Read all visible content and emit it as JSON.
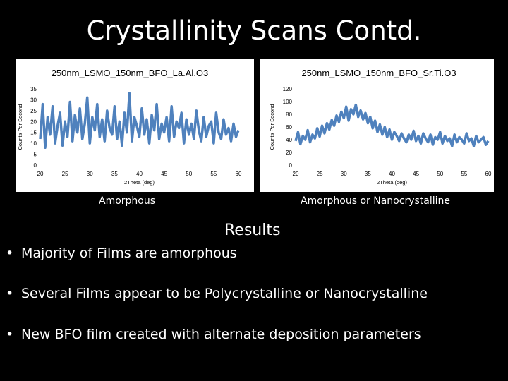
{
  "slide": {
    "title": "Crystallinity Scans Contd.",
    "results_heading": "Results",
    "bullets": [
      "Majority of Films are amorphous",
      "Several Films appear to be Polycrystalline or Nanocrystalline",
      "New BFO film created with alternate deposition parameters"
    ]
  },
  "chart_data": [
    {
      "type": "line",
      "title": "250nm_LSMO_150nm_BFO_La.Al.O3",
      "xlabel": "2Theta (deg)",
      "ylabel": "Counts Per Second",
      "xlim": [
        20,
        60
      ],
      "ylim": [
        0,
        35
      ],
      "x_ticks": [
        20,
        25,
        30,
        35,
        40,
        45,
        50,
        55,
        60
      ],
      "y_ticks": [
        0,
        5,
        10,
        15,
        20,
        25,
        30,
        35
      ],
      "series_color": "#4f81bd",
      "grid": false,
      "caption": "Amorphous",
      "x": [
        20,
        20.5,
        21,
        21.5,
        22,
        22.5,
        23,
        23.5,
        24,
        24.5,
        25,
        25.5,
        26,
        26.5,
        27,
        27.5,
        28,
        28.5,
        29,
        29.5,
        30,
        30.5,
        31,
        31.5,
        32,
        32.5,
        33,
        33.5,
        34,
        34.5,
        35,
        35.5,
        36,
        36.5,
        37,
        37.5,
        38,
        38.5,
        39,
        39.5,
        40,
        40.5,
        41,
        41.5,
        42,
        42.5,
        43,
        43.5,
        44,
        44.5,
        45,
        45.5,
        46,
        46.5,
        47,
        47.5,
        48,
        48.5,
        49,
        49.5,
        50,
        50.5,
        51,
        51.5,
        52,
        52.5,
        53,
        53.5,
        54,
        54.5,
        55,
        55.5,
        56,
        56.5,
        57,
        57.5,
        58,
        58.5,
        59,
        59.5,
        60
      ],
      "y": [
        12,
        28,
        8,
        22,
        14,
        27,
        10,
        18,
        24,
        9,
        20,
        13,
        29,
        11,
        23,
        15,
        26,
        12,
        19,
        31,
        10,
        22,
        16,
        28,
        13,
        21,
        11,
        25,
        17,
        14,
        27,
        12,
        20,
        9,
        24,
        15,
        33,
        11,
        22,
        18,
        13,
        26,
        14,
        21,
        10,
        23,
        16,
        28,
        12,
        19,
        15,
        22,
        11,
        27,
        13,
        20,
        17,
        24,
        10,
        21,
        14,
        19,
        12,
        25,
        16,
        11,
        22,
        13,
        18,
        20,
        10,
        24,
        15,
        12,
        21,
        14,
        17,
        11,
        19,
        13,
        16
      ]
    },
    {
      "type": "line",
      "title": "250nm_LSMO_150nm_BFO_Sr.Ti.O3",
      "xlabel": "2Theta (deg)",
      "ylabel": "Counts Per Second",
      "xlim": [
        20,
        60
      ],
      "ylim": [
        0,
        120
      ],
      "x_ticks": [
        20,
        25,
        30,
        35,
        40,
        45,
        50,
        55,
        60
      ],
      "y_ticks": [
        0,
        20,
        40,
        60,
        80,
        100,
        120
      ],
      "series_color": "#4f81bd",
      "grid": false,
      "caption": "Amorphous or Nanocrystalline",
      "x": [
        20,
        20.5,
        21,
        21.5,
        22,
        22.5,
        23,
        23.5,
        24,
        24.5,
        25,
        25.5,
        26,
        26.5,
        27,
        27.5,
        28,
        28.5,
        29,
        29.5,
        30,
        30.5,
        31,
        31.5,
        32,
        32.5,
        33,
        33.5,
        34,
        34.5,
        35,
        35.5,
        36,
        36.5,
        37,
        37.5,
        38,
        38.5,
        39,
        39.5,
        40,
        40.5,
        41,
        41.5,
        42,
        42.5,
        43,
        43.5,
        44,
        44.5,
        45,
        45.5,
        46,
        46.5,
        47,
        47.5,
        48,
        48.5,
        49,
        49.5,
        50,
        50.5,
        51,
        51.5,
        52,
        52.5,
        53,
        53.5,
        54,
        54.5,
        55,
        55.5,
        56,
        56.5,
        57,
        57.5,
        58,
        58.5,
        59,
        59.5,
        60
      ],
      "y": [
        38,
        52,
        33,
        46,
        40,
        55,
        36,
        48,
        42,
        58,
        45,
        62,
        50,
        66,
        56,
        71,
        62,
        78,
        68,
        84,
        74,
        92,
        70,
        88,
        80,
        95,
        76,
        86,
        72,
        82,
        66,
        76,
        58,
        70,
        52,
        64,
        48,
        60,
        44,
        56,
        40,
        52,
        46,
        38,
        50,
        42,
        36,
        48,
        40,
        54,
        38,
        46,
        34,
        50,
        42,
        36,
        48,
        32,
        44,
        40,
        52,
        34,
        46,
        38,
        42,
        30,
        48,
        36,
        44,
        40,
        34,
        50,
        38,
        42,
        30,
        46,
        36,
        40,
        44,
        32,
        38
      ]
    }
  ]
}
